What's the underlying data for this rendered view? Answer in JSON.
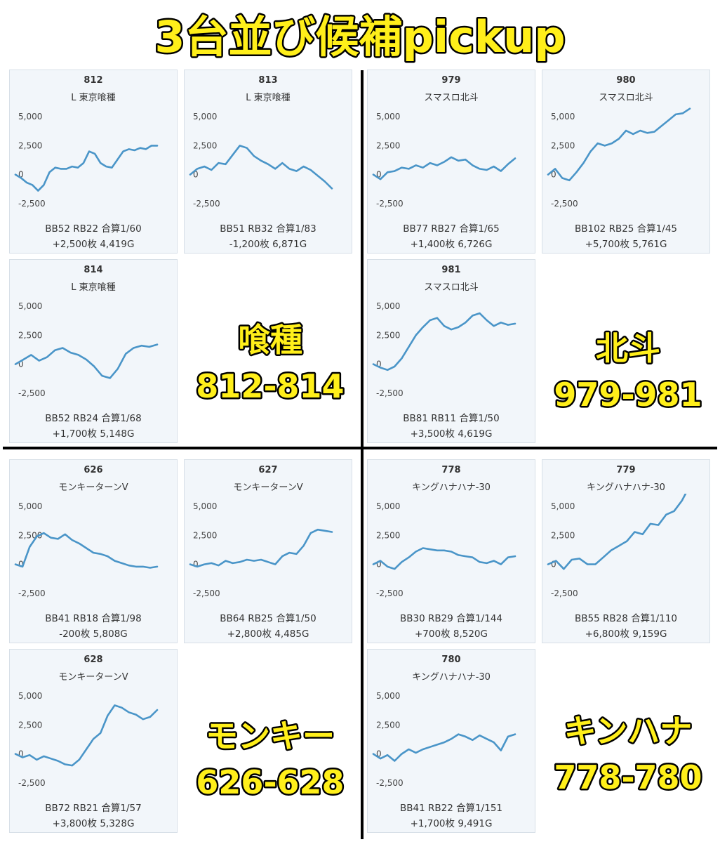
{
  "title": "3台並び候補pickup",
  "colors": {
    "line": "#4a95c8",
    "card_bg": "#f2f6fa",
    "label_fill": "#ffef1a",
    "label_stroke": "#000000"
  },
  "groups": [
    {
      "name": "喰種",
      "range": "812-814"
    },
    {
      "name": "北斗",
      "range": "979-981"
    },
    {
      "name": "モンキー",
      "range": "626-628"
    },
    {
      "name": "キンハナ",
      "range": "778-780"
    }
  ],
  "cards": [
    {
      "number": "812",
      "machine": "L 東京喰種",
      "stats1": "BB52 RB22 合算1/60",
      "stats2": "+2,500枚 4,419G"
    },
    {
      "number": "813",
      "machine": "L 東京喰種",
      "stats1": "BB51 RB32 合算1/83",
      "stats2": "-1,200枚 6,871G"
    },
    {
      "number": "979",
      "machine": "スマスロ北斗",
      "stats1": "BB77 RB27 合算1/65",
      "stats2": "+1,400枚 6,726G"
    },
    {
      "number": "980",
      "machine": "スマスロ北斗",
      "stats1": "BB102 RB25 合算1/45",
      "stats2": "+5,700枚 5,761G"
    },
    {
      "number": "814",
      "machine": "L 東京喰種",
      "stats1": "BB52 RB24 合算1/68",
      "stats2": "+1,700枚 5,148G"
    },
    {
      "number": "981",
      "machine": "スマスロ北斗",
      "stats1": "BB81 RB11 合算1/50",
      "stats2": "+3,500枚 4,619G"
    },
    {
      "number": "626",
      "machine": "モンキーターンV",
      "stats1": "BB41 RB18 合算1/98",
      "stats2": "-200枚 5,808G"
    },
    {
      "number": "627",
      "machine": "モンキーターンV",
      "stats1": "BB64 RB25 合算1/50",
      "stats2": "+2,800枚 4,485G"
    },
    {
      "number": "778",
      "machine": "キングハナハナ-30",
      "stats1": "BB30 RB29 合算1/144",
      "stats2": "+700枚 8,520G"
    },
    {
      "number": "779",
      "machine": "キングハナハナ-30",
      "stats1": "BB55 RB28 合算1/110",
      "stats2": "+6,800枚 9,159G"
    },
    {
      "number": "628",
      "machine": "モンキーターンV",
      "stats1": "BB72 RB21 合算1/57",
      "stats2": "+3,800枚 5,328G"
    },
    {
      "number": "780",
      "machine": "キングハナハナ-30",
      "stats1": "BB41 RB22 合算1/151",
      "stats2": "+1,700枚 9,491G"
    }
  ],
  "chart_data": [
    {
      "type": "line",
      "title": "812",
      "subtitle": "L 東京喰種",
      "yticks": [
        "5,000",
        "2,500",
        "0",
        "-2,500"
      ],
      "ylim": [
        -3000,
        5500
      ],
      "x": [
        0,
        0.04,
        0.08,
        0.12,
        0.16,
        0.2,
        0.24,
        0.28,
        0.32,
        0.36,
        0.4,
        0.44,
        0.48,
        0.52,
        0.56,
        0.6,
        0.64,
        0.68,
        0.72,
        0.76,
        0.8,
        0.84,
        0.88,
        0.92,
        0.96,
        1.0
      ],
      "values": [
        0,
        -300,
        -700,
        -900,
        -1400,
        -900,
        200,
        600,
        500,
        500,
        700,
        600,
        1000,
        2000,
        1800,
        1000,
        700,
        600,
        1300,
        2000,
        2200,
        2100,
        2300,
        2200,
        2500,
        2500
      ]
    },
    {
      "type": "line",
      "title": "813",
      "subtitle": "L 東京喰種",
      "yticks": [
        "5,000",
        "2,500",
        "0",
        "-2,500"
      ],
      "ylim": [
        -3000,
        5500
      ],
      "x": [
        0,
        0.05,
        0.1,
        0.15,
        0.2,
        0.25,
        0.3,
        0.35,
        0.4,
        0.45,
        0.5,
        0.55,
        0.6,
        0.65,
        0.7,
        0.75,
        0.8,
        0.85,
        0.9,
        0.95,
        1.0
      ],
      "values": [
        0,
        500,
        700,
        400,
        1000,
        900,
        1700,
        2500,
        2300,
        1600,
        1200,
        900,
        500,
        1000,
        500,
        300,
        700,
        400,
        -100,
        -600,
        -1200
      ]
    },
    {
      "type": "line",
      "title": "979",
      "subtitle": "スマスロ北斗",
      "yticks": [
        "5,000",
        "2,500",
        "0",
        "-2,500"
      ],
      "ylim": [
        -3000,
        5500
      ],
      "x": [
        0,
        0.05,
        0.1,
        0.15,
        0.2,
        0.25,
        0.3,
        0.35,
        0.4,
        0.45,
        0.5,
        0.55,
        0.6,
        0.65,
        0.7,
        0.75,
        0.8,
        0.85,
        0.9,
        0.95,
        1.0
      ],
      "values": [
        0,
        -400,
        200,
        300,
        600,
        500,
        800,
        600,
        1000,
        800,
        1100,
        1500,
        1200,
        1300,
        800,
        500,
        400,
        700,
        300,
        900,
        1400
      ]
    },
    {
      "type": "line",
      "title": "980",
      "subtitle": "スマスロ北斗",
      "yticks": [
        "5,000",
        "2,500",
        "0",
        "-2,500"
      ],
      "ylim": [
        -3000,
        5500
      ],
      "x": [
        0,
        0.05,
        0.1,
        0.15,
        0.2,
        0.25,
        0.3,
        0.35,
        0.4,
        0.45,
        0.5,
        0.55,
        0.6,
        0.65,
        0.7,
        0.75,
        0.8,
        0.85,
        0.9,
        0.95,
        1.0
      ],
      "values": [
        0,
        500,
        -300,
        -500,
        200,
        1000,
        2000,
        2700,
        2500,
        2700,
        3100,
        3800,
        3500,
        3800,
        3600,
        3700,
        4200,
        4700,
        5200,
        5300,
        5700
      ]
    },
    {
      "type": "line",
      "title": "814",
      "subtitle": "L 東京喰種",
      "yticks": [
        "5,000",
        "2,500",
        "0",
        "-2,500"
      ],
      "ylim": [
        -3000,
        5500
      ],
      "x": [
        0,
        0.056,
        0.111,
        0.167,
        0.222,
        0.278,
        0.333,
        0.389,
        0.444,
        0.5,
        0.556,
        0.611,
        0.667,
        0.722,
        0.778,
        0.833,
        0.889,
        0.944,
        1.0
      ],
      "values": [
        0,
        400,
        800,
        300,
        600,
        1200,
        1400,
        1000,
        800,
        400,
        -200,
        -1000,
        -1200,
        -400,
        900,
        1400,
        1600,
        1500,
        1700
      ]
    },
    {
      "type": "line",
      "title": "981",
      "subtitle": "スマスロ北斗",
      "yticks": [
        "5,000",
        "2,500",
        "0",
        "-2,500"
      ],
      "ylim": [
        -3000,
        5500
      ],
      "x": [
        0,
        0.05,
        0.1,
        0.15,
        0.2,
        0.25,
        0.3,
        0.35,
        0.4,
        0.45,
        0.5,
        0.55,
        0.6,
        0.65,
        0.7,
        0.75,
        0.8,
        0.85,
        0.9,
        0.95,
        1.0
      ],
      "values": [
        0,
        -300,
        -500,
        -200,
        500,
        1500,
        2500,
        3200,
        3800,
        4000,
        3300,
        3000,
        3200,
        3600,
        4200,
        4400,
        3800,
        3300,
        3600,
        3400,
        3500
      ]
    },
    {
      "type": "line",
      "title": "626",
      "subtitle": "モンキーターンV",
      "yticks": [
        "5,000",
        "2,500",
        "0",
        "-2,500"
      ],
      "ylim": [
        -3000,
        5500
      ],
      "x": [
        0,
        0.05,
        0.1,
        0.15,
        0.2,
        0.25,
        0.3,
        0.35,
        0.4,
        0.45,
        0.5,
        0.55,
        0.6,
        0.65,
        0.7,
        0.75,
        0.8,
        0.85,
        0.9,
        0.95,
        1.0
      ],
      "values": [
        0,
        -200,
        1500,
        2400,
        2700,
        2300,
        2200,
        2600,
        2100,
        1800,
        1400,
        1000,
        900,
        700,
        300,
        100,
        -100,
        -200,
        -200,
        -300,
        -200
      ]
    },
    {
      "type": "line",
      "title": "627",
      "subtitle": "モンキーターンV",
      "yticks": [
        "5,000",
        "2,500",
        "0",
        "-2,500"
      ],
      "ylim": [
        -3000,
        5500
      ],
      "x": [
        0,
        0.05,
        0.1,
        0.15,
        0.2,
        0.25,
        0.3,
        0.35,
        0.4,
        0.45,
        0.5,
        0.55,
        0.6,
        0.65,
        0.7,
        0.75,
        0.8,
        0.85,
        0.9,
        0.95,
        1.0
      ],
      "values": [
        0,
        -200,
        0,
        100,
        -100,
        300,
        100,
        200,
        400,
        300,
        400,
        200,
        0,
        700,
        1000,
        900,
        1600,
        2700,
        3000,
        2900,
        2800
      ]
    },
    {
      "type": "line",
      "title": "778",
      "subtitle": "キングハナハナ-30",
      "yticks": [
        "5,000",
        "2,500",
        "0",
        "-2,500"
      ],
      "ylim": [
        -3000,
        5500
      ],
      "x": [
        0,
        0.05,
        0.1,
        0.15,
        0.2,
        0.25,
        0.3,
        0.35,
        0.4,
        0.45,
        0.5,
        0.55,
        0.6,
        0.65,
        0.7,
        0.75,
        0.8,
        0.85,
        0.9,
        0.95,
        1.0
      ],
      "values": [
        0,
        300,
        -200,
        -400,
        200,
        600,
        1100,
        1400,
        1300,
        1200,
        1200,
        1100,
        800,
        700,
        600,
        200,
        100,
        300,
        0,
        600,
        700
      ]
    },
    {
      "type": "line",
      "title": "779",
      "subtitle": "キングハナハナ-30",
      "yticks": [
        "5,000",
        "2,500",
        "0",
        "-2,500"
      ],
      "ylim": [
        -3000,
        5500
      ],
      "x": [
        0,
        0.056,
        0.111,
        0.167,
        0.222,
        0.278,
        0.333,
        0.389,
        0.444,
        0.5,
        0.556,
        0.611,
        0.667,
        0.722,
        0.778,
        0.833,
        0.889,
        0.944,
        1.0
      ],
      "values": [
        0,
        300,
        -400,
        400,
        500,
        0,
        0,
        600,
        1200,
        1600,
        2000,
        2800,
        2600,
        3500,
        3400,
        4300,
        4600,
        5500,
        6800
      ]
    },
    {
      "type": "line",
      "title": "628",
      "subtitle": "モンキーターンV",
      "yticks": [
        "5,000",
        "2,500",
        "0",
        "-2,500"
      ],
      "ylim": [
        -3000,
        5500
      ],
      "x": [
        0,
        0.05,
        0.1,
        0.15,
        0.2,
        0.25,
        0.3,
        0.35,
        0.4,
        0.45,
        0.5,
        0.55,
        0.6,
        0.65,
        0.7,
        0.75,
        0.8,
        0.85,
        0.9,
        0.95,
        1.0
      ],
      "values": [
        0,
        -300,
        -100,
        -500,
        -200,
        -400,
        -600,
        -900,
        -1000,
        -500,
        400,
        1300,
        1800,
        3300,
        4200,
        4000,
        3600,
        3400,
        3000,
        3200,
        3800
      ]
    },
    {
      "type": "line",
      "title": "780",
      "subtitle": "キングハナハナ-30",
      "yticks": [
        "5,000",
        "2,500",
        "0",
        "-2,500"
      ],
      "ylim": [
        -3000,
        5500
      ],
      "x": [
        0,
        0.05,
        0.1,
        0.15,
        0.2,
        0.25,
        0.3,
        0.35,
        0.4,
        0.45,
        0.5,
        0.55,
        0.6,
        0.65,
        0.7,
        0.75,
        0.8,
        0.85,
        0.9,
        0.95,
        1.0
      ],
      "values": [
        0,
        -400,
        -100,
        -600,
        0,
        400,
        100,
        400,
        600,
        800,
        1000,
        1300,
        1700,
        1500,
        1200,
        1600,
        1300,
        1000,
        300,
        1500,
        1700
      ]
    }
  ]
}
